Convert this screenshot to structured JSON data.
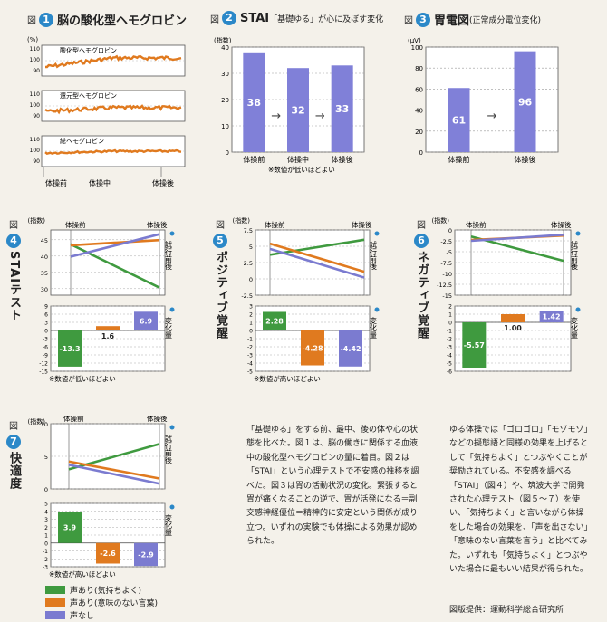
{
  "colors": {
    "green": "#3f9a3f",
    "orange": "#e07a1f",
    "purple": "#7b7bd0",
    "bar": "#8080d8",
    "wave": "#e07a1f",
    "accent": "#2b88c8"
  },
  "fig1": {
    "label": "図",
    "num": "1",
    "title": "脳の酸化型ヘモグロビン",
    "unit": "(%)",
    "panels": [
      "酸化型ヘモグロビン",
      "還元型ヘモグロビン",
      "総ヘモグロビン"
    ],
    "yticks": [
      "110",
      "100",
      "90"
    ],
    "xlabels": [
      "体操前",
      "体操中",
      "体操後"
    ]
  },
  "fig2": {
    "label": "図",
    "num": "2",
    "title": "STAI",
    "subtitle": "「基礎ゆる」が心に及ぼす変化",
    "unit": "(指数)",
    "note": "※数値が低いほどよい",
    "chart_data": {
      "type": "bar",
      "categories": [
        "体操前",
        "体操中",
        "体操後"
      ],
      "values": [
        38,
        32,
        33
      ],
      "ylim": [
        0,
        40
      ],
      "yticks": [
        "40",
        "30",
        "20",
        "10",
        "0"
      ]
    },
    "value_labels": [
      "38",
      "32",
      "33"
    ],
    "arrow": "→"
  },
  "fig3": {
    "label": "図",
    "num": "3",
    "title": "胃電図",
    "subtitle": "(正常成分電位変化)",
    "unit": "(µV)",
    "chart_data": {
      "type": "bar",
      "categories": [
        "体操前",
        "体操後"
      ],
      "values": [
        61,
        96
      ],
      "ylim": [
        0,
        100
      ],
      "yticks": [
        "100",
        "80",
        "60",
        "40",
        "20",
        "0"
      ]
    },
    "value_labels": [
      "61",
      "96"
    ],
    "arrow": "→"
  },
  "side_labels": {
    "pre_post": "試行前後",
    "change": "変化量"
  },
  "fig4": {
    "label": "図",
    "num": "4",
    "title": "STAIテスト",
    "unit": "(指数)",
    "xlabels": [
      "体操前",
      "体操後"
    ],
    "note": "※数値が低いほどよい",
    "top": {
      "yticks": [
        "45",
        "40",
        "35",
        "30"
      ],
      "ylim": [
        28,
        48
      ]
    },
    "bottom": {
      "yticks": [
        "9",
        "6",
        "3",
        "0",
        "-3",
        "-6",
        "-9",
        "-12",
        "-15"
      ],
      "ylim": [
        -15,
        9
      ]
    },
    "chart_data": {
      "type": "line",
      "series": [
        {
          "name": "声あり(気持ちよく)",
          "pre": 43.6,
          "post": 30.3,
          "change": -13.3,
          "label": "-13.3"
        },
        {
          "name": "声あり(意味のない言葉)",
          "pre": 43.3,
          "post": 44.9,
          "change": 1.6,
          "label": "1.6"
        },
        {
          "name": "声なし",
          "pre": 39.8,
          "post": 46.7,
          "change": 6.9,
          "label": "6.9"
        }
      ]
    }
  },
  "fig5": {
    "label": "図",
    "num": "5",
    "title": "ポジティブ覚醒",
    "unit": "(指数)",
    "xlabels": [
      "体操前",
      "体操後"
    ],
    "note": "※数値が高いほどよい",
    "top": {
      "yticks": [
        "7.5",
        "5",
        "2.5",
        "0",
        "-2.5"
      ],
      "ylim": [
        -2.5,
        7.5
      ]
    },
    "bottom": {
      "yticks": [
        "3",
        "2",
        "1",
        "0",
        "-1",
        "-2",
        "-3",
        "-4",
        "-5"
      ],
      "ylim": [
        -5,
        3
      ]
    },
    "chart_data": {
      "type": "line",
      "series": [
        {
          "name": "声あり(気持ちよく)",
          "pre": 3.7,
          "post": 6.0,
          "change": 2.28,
          "label": "2.28"
        },
        {
          "name": "声あり(意味のない言葉)",
          "pre": 5.4,
          "post": 1.1,
          "change": -4.28,
          "label": "-4.28"
        },
        {
          "name": "声なし",
          "pre": 4.6,
          "post": 0.2,
          "change": -4.42,
          "label": "-4.42"
        }
      ]
    }
  },
  "fig6": {
    "label": "図",
    "num": "6",
    "title": "ネガティブ覚醒",
    "unit": "(指数)",
    "xlabels": [
      "体操前",
      "体操後"
    ],
    "note": "",
    "top": {
      "yticks": [
        "0",
        "-2.5",
        "-5",
        "-7.5",
        "-10",
        "-12.5",
        "-15"
      ],
      "ylim": [
        -15,
        0
      ]
    },
    "bottom": {
      "yticks": [
        "2",
        "1",
        "0",
        "-1",
        "-2",
        "-3",
        "-4",
        "-5",
        "-6"
      ],
      "ylim": [
        -6,
        2
      ]
    },
    "chart_data": {
      "type": "line",
      "series": [
        {
          "name": "声あり(気持ちよく)",
          "pre": -1.5,
          "post": -7.1,
          "change": -5.57,
          "label": "-5.57"
        },
        {
          "name": "声あり(意味のない言葉)",
          "pre": -2.3,
          "post": -1.3,
          "change": 1.0,
          "label": "1.00"
        },
        {
          "name": "声なし",
          "pre": -2.5,
          "post": -1.1,
          "change": 1.42,
          "label": "1.42"
        }
      ]
    }
  },
  "fig7": {
    "label": "図",
    "num": "7",
    "title": "快適度",
    "unit": "(指数)",
    "xlabels": [
      "体操前",
      "体操後"
    ],
    "note": "※数値が高いほどよい",
    "top": {
      "yticks": [
        "10",
        "5",
        "0"
      ],
      "ylim": [
        0,
        10
      ]
    },
    "bottom": {
      "yticks": [
        "5",
        "4",
        "3",
        "2",
        "1",
        "0",
        "-1",
        "-2",
        "-3"
      ],
      "ylim": [
        -3,
        5
      ]
    },
    "chart_data": {
      "type": "line",
      "series": [
        {
          "name": "声あり(気持ちよく)",
          "pre": 3.0,
          "post": 6.9,
          "change": 3.9,
          "label": "3.9"
        },
        {
          "name": "声あり(意味のない言葉)",
          "pre": 4.2,
          "post": 1.6,
          "change": -2.6,
          "label": "-2.6"
        },
        {
          "name": "声なし",
          "pre": 3.7,
          "post": 0.8,
          "change": -2.9,
          "label": "-2.9"
        }
      ]
    }
  },
  "legend": [
    "声あり(気持ちよく)",
    "声あり(意味のない言葉)",
    "声なし"
  ],
  "text_mid": "「基礎ゆる」をする前、最中、後の体や心の状態を比べた。図１は、脳の働きに関係する血液中の酸化型ヘモグロビンの量に着目。図２は「STAI」という心理テストで不安感の推移を調べた。図３は胃の活動状況の変化。緊張すると胃が痛くなることの逆で、胃が活発になる＝副交感神経優位＝精神的に安定という関係が成り立つ。いずれの実験でも体操による効果が認められた。",
  "text_right": "ゆる体操では「ゴロゴロ」「モゾモゾ」などの擬態語と同様の効果を上げるとして「気持ちよく」とつぶやくことが奨励されている。不安感を調べる「STAI」（図４）や、筑波大学で開発された心理テスト（図５〜７）を使い、「気持ちよく」と言いながら体操をした場合の効果を、「声を出さない」「意味のない言葉を言う」と比べてみた。いずれも「気持ちよく」とつぶやいた場合に最もいい結果が得られた。",
  "credit": "図版提供：運動科学総合研究所"
}
